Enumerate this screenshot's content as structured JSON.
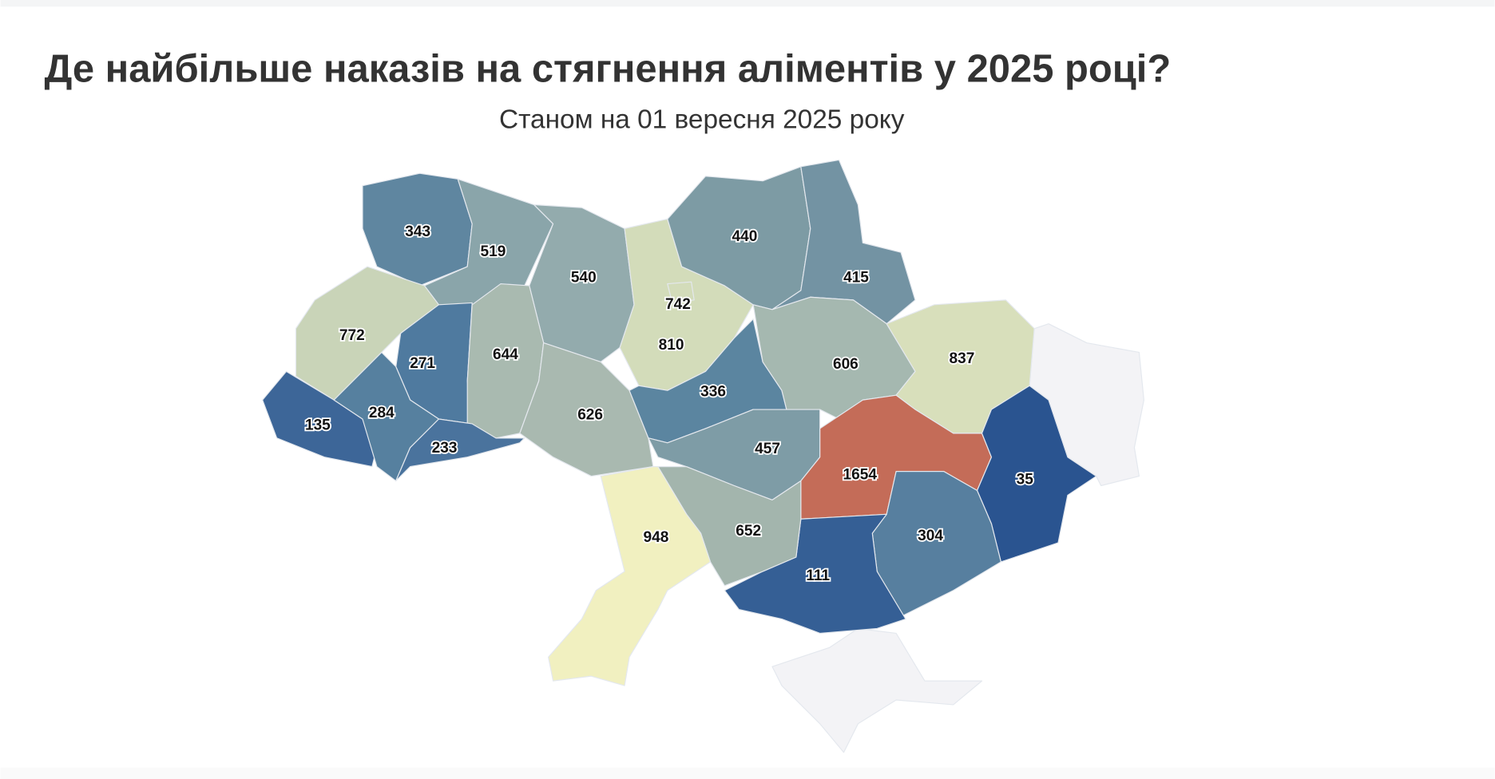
{
  "title": "Де найбільше наказів на стягнення аліментів у 2025 році?",
  "subtitle": "Станом на 01 вересня 2025 року",
  "map": {
    "type": "choropleth",
    "regions": [
      {
        "value": 343,
        "color": "#5f86a0"
      },
      {
        "value": 519,
        "color": "#8aa5aa"
      },
      {
        "value": 540,
        "color": "#93abad"
      },
      {
        "value": 810,
        "color": "#d3dcba"
      },
      {
        "value": 742,
        "color": "#d3dcba"
      },
      {
        "value": 440,
        "color": "#7d9ba4"
      },
      {
        "value": 415,
        "color": "#7393a3"
      },
      {
        "value": 772,
        "color": "#c9d4b8"
      },
      {
        "value": 271,
        "color": "#4f7a9f"
      },
      {
        "value": 644,
        "color": "#a9bab0"
      },
      {
        "value": 626,
        "color": "#a9b9b0"
      },
      {
        "value": 336,
        "color": "#5b85a0"
      },
      {
        "value": 606,
        "color": "#a5b8b0"
      },
      {
        "value": 837,
        "color": "#d8dfbb"
      },
      {
        "value": 135,
        "color": "#3d6698"
      },
      {
        "value": 284,
        "color": "#56809f"
      },
      {
        "value": 233,
        "color": "#4a739d"
      },
      {
        "value": 457,
        "color": "#7e9ca6"
      },
      {
        "value": 1654,
        "color": "#c46c58"
      },
      {
        "value": 35,
        "color": "#2a5490"
      },
      {
        "value": 304,
        "color": "#577f9f"
      },
      {
        "value": 111,
        "color": "#355f95"
      },
      {
        "value": 652,
        "color": "#a3b5ad"
      },
      {
        "value": 948,
        "color": "#f1f0c0"
      }
    ]
  }
}
